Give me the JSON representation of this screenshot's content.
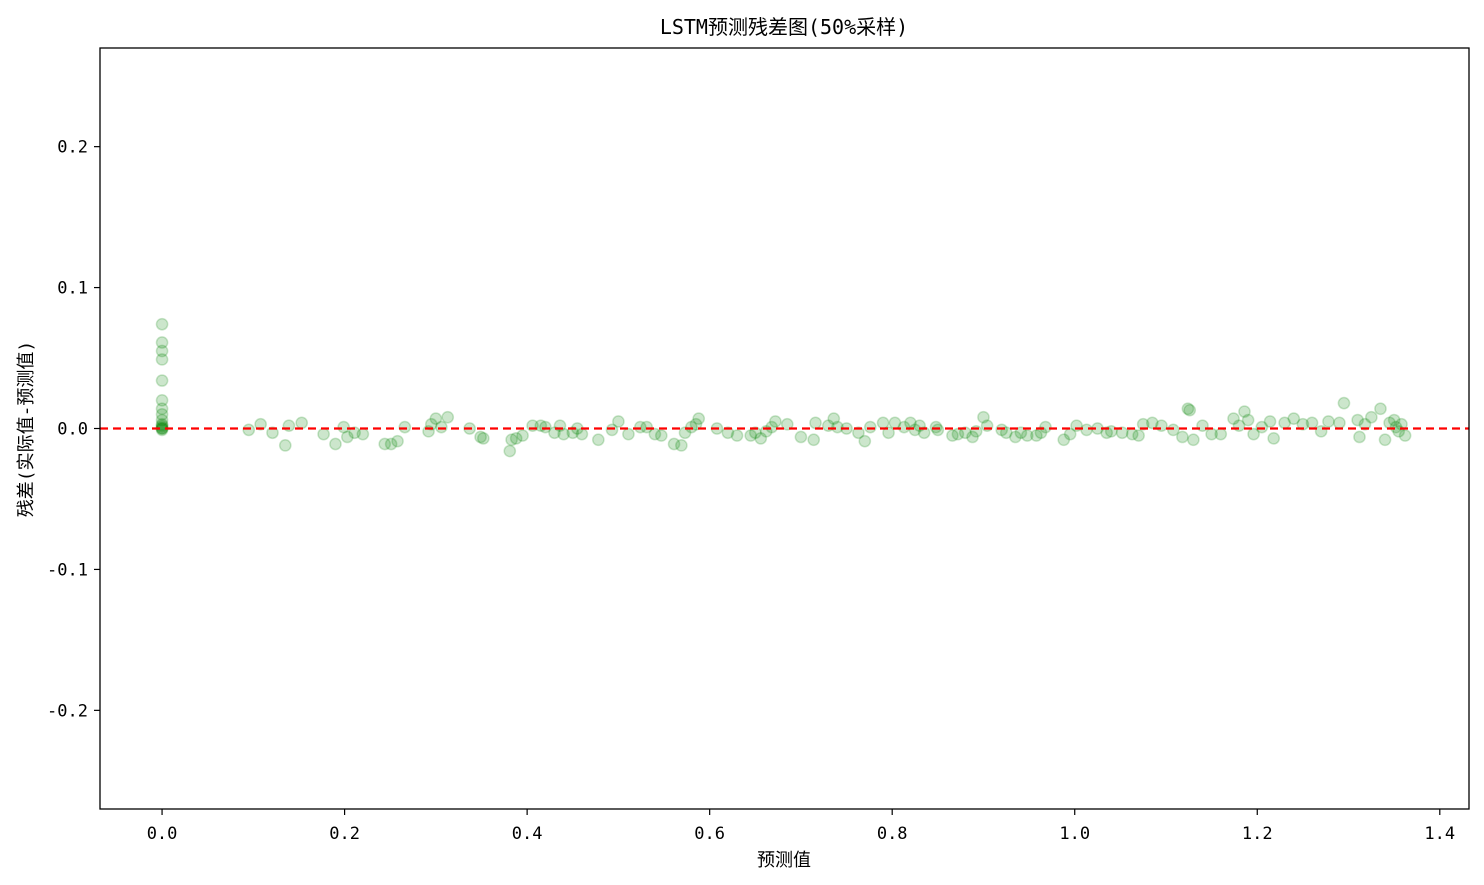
{
  "chart_data": {
    "type": "scatter",
    "title": "LSTM预测残差图(50%采样)",
    "xlabel": "预测值",
    "ylabel": "残差(实际值-预测值)",
    "xlim": [
      -0.068,
      1.432
    ],
    "ylim": [
      -0.27,
      0.27
    ],
    "xticks": [
      0.0,
      0.2,
      0.4,
      0.6,
      0.8,
      1.0,
      1.2,
      1.4
    ],
    "xtick_labels": [
      "0.0",
      "0.2",
      "0.4",
      "0.6",
      "0.8",
      "1.0",
      "1.2",
      "1.4"
    ],
    "yticks": [
      -0.2,
      -0.1,
      0.0,
      0.1,
      0.2
    ],
    "ytick_labels": [
      "-0.2",
      "-0.1",
      "0.0",
      "0.1",
      "0.2"
    ],
    "grid": false,
    "point_color": "#008000",
    "point_opacity": 0.2,
    "reference_line": {
      "y": 0.0,
      "color": "#ff0000",
      "style": "dashed"
    },
    "points": [
      [
        0.0,
        0.074
      ],
      [
        0.0,
        0.061
      ],
      [
        0.0,
        0.055
      ],
      [
        0.0,
        0.049
      ],
      [
        0.0,
        0.034
      ],
      [
        0.0,
        0.02
      ],
      [
        0.0,
        0.014
      ],
      [
        0.0,
        0.01
      ],
      [
        0.0,
        0.006
      ],
      [
        0.0,
        0.003
      ],
      [
        0.0,
        0.001
      ],
      [
        0.0,
        0.0
      ],
      [
        0.0,
        -0.001
      ],
      [
        0.0,
        0.0
      ],
      [
        0.0,
        0.002
      ],
      [
        0.095,
        -0.001
      ],
      [
        0.108,
        0.003
      ],
      [
        0.121,
        -0.003
      ],
      [
        0.135,
        -0.012
      ],
      [
        0.139,
        0.002
      ],
      [
        0.153,
        0.004
      ],
      [
        0.177,
        -0.004
      ],
      [
        0.19,
        -0.011
      ],
      [
        0.199,
        0.001
      ],
      [
        0.203,
        -0.006
      ],
      [
        0.211,
        -0.003
      ],
      [
        0.22,
        -0.004
      ],
      [
        0.244,
        -0.011
      ],
      [
        0.251,
        -0.011
      ],
      [
        0.258,
        -0.009
      ],
      [
        0.266,
        0.001
      ],
      [
        0.292,
        -0.002
      ],
      [
        0.295,
        0.003
      ],
      [
        0.3,
        0.007
      ],
      [
        0.306,
        0.001
      ],
      [
        0.313,
        0.008
      ],
      [
        0.337,
        0.0
      ],
      [
        0.349,
        -0.006
      ],
      [
        0.352,
        -0.007
      ],
      [
        0.381,
        -0.016
      ],
      [
        0.383,
        -0.008
      ],
      [
        0.388,
        -0.007
      ],
      [
        0.395,
        -0.005
      ],
      [
        0.406,
        0.002
      ],
      [
        0.415,
        0.002
      ],
      [
        0.42,
        0.001
      ],
      [
        0.43,
        -0.003
      ],
      [
        0.436,
        0.002
      ],
      [
        0.44,
        -0.004
      ],
      [
        0.45,
        -0.003
      ],
      [
        0.455,
        0.0
      ],
      [
        0.46,
        -0.004
      ],
      [
        0.478,
        -0.008
      ],
      [
        0.493,
        -0.001
      ],
      [
        0.5,
        0.005
      ],
      [
        0.511,
        -0.004
      ],
      [
        0.524,
        0.001
      ],
      [
        0.531,
        0.001
      ],
      [
        0.54,
        -0.004
      ],
      [
        0.547,
        -0.005
      ],
      [
        0.561,
        -0.011
      ],
      [
        0.569,
        -0.012
      ],
      [
        0.573,
        -0.003
      ],
      [
        0.58,
        0.001
      ],
      [
        0.585,
        0.003
      ],
      [
        0.588,
        0.007
      ],
      [
        0.608,
        0.0
      ],
      [
        0.62,
        -0.003
      ],
      [
        0.63,
        -0.005
      ],
      [
        0.645,
        -0.005
      ],
      [
        0.65,
        -0.003
      ],
      [
        0.656,
        -0.007
      ],
      [
        0.662,
        -0.002
      ],
      [
        0.668,
        0.001
      ],
      [
        0.672,
        0.005
      ],
      [
        0.685,
        0.003
      ],
      [
        0.7,
        -0.006
      ],
      [
        0.714,
        -0.008
      ],
      [
        0.716,
        0.004
      ],
      [
        0.73,
        0.002
      ],
      [
        0.736,
        0.007
      ],
      [
        0.74,
        0.001
      ],
      [
        0.75,
        0.0
      ],
      [
        0.763,
        -0.003
      ],
      [
        0.77,
        -0.009
      ],
      [
        0.776,
        0.001
      ],
      [
        0.79,
        0.004
      ],
      [
        0.796,
        -0.003
      ],
      [
        0.803,
        0.004
      ],
      [
        0.813,
        0.001
      ],
      [
        0.82,
        0.004
      ],
      [
        0.825,
        -0.001
      ],
      [
        0.83,
        0.002
      ],
      [
        0.835,
        -0.003
      ],
      [
        0.848,
        0.001
      ],
      [
        0.85,
        -0.001
      ],
      [
        0.866,
        -0.005
      ],
      [
        0.872,
        -0.004
      ],
      [
        0.88,
        -0.003
      ],
      [
        0.888,
        -0.006
      ],
      [
        0.892,
        -0.002
      ],
      [
        0.9,
        0.008
      ],
      [
        0.904,
        0.002
      ],
      [
        0.92,
        -0.001
      ],
      [
        0.925,
        -0.003
      ],
      [
        0.935,
        -0.006
      ],
      [
        0.941,
        -0.003
      ],
      [
        0.948,
        -0.005
      ],
      [
        0.958,
        -0.005
      ],
      [
        0.963,
        -0.003
      ],
      [
        0.968,
        0.001
      ],
      [
        0.988,
        -0.008
      ],
      [
        0.995,
        -0.004
      ],
      [
        1.002,
        0.002
      ],
      [
        1.013,
        -0.001
      ],
      [
        1.025,
        0.0
      ],
      [
        1.035,
        -0.003
      ],
      [
        1.04,
        -0.002
      ],
      [
        1.052,
        -0.003
      ],
      [
        1.063,
        -0.004
      ],
      [
        1.07,
        -0.005
      ],
      [
        1.075,
        0.003
      ],
      [
        1.085,
        0.004
      ],
      [
        1.095,
        0.002
      ],
      [
        1.108,
        -0.001
      ],
      [
        1.118,
        -0.006
      ],
      [
        1.124,
        0.014
      ],
      [
        1.126,
        0.013
      ],
      [
        1.13,
        -0.008
      ],
      [
        1.14,
        0.002
      ],
      [
        1.15,
        -0.004
      ],
      [
        1.16,
        -0.004
      ],
      [
        1.174,
        0.007
      ],
      [
        1.18,
        0.002
      ],
      [
        1.186,
        0.012
      ],
      [
        1.19,
        0.006
      ],
      [
        1.196,
        -0.004
      ],
      [
        1.205,
        0.001
      ],
      [
        1.214,
        0.005
      ],
      [
        1.218,
        -0.007
      ],
      [
        1.23,
        0.004
      ],
      [
        1.24,
        0.007
      ],
      [
        1.25,
        0.003
      ],
      [
        1.26,
        0.004
      ],
      [
        1.27,
        -0.002
      ],
      [
        1.278,
        0.005
      ],
      [
        1.29,
        0.004
      ],
      [
        1.295,
        0.018
      ],
      [
        1.31,
        0.006
      ],
      [
        1.312,
        -0.006
      ],
      [
        1.318,
        0.003
      ],
      [
        1.325,
        0.008
      ],
      [
        1.335,
        0.014
      ],
      [
        1.34,
        -0.008
      ],
      [
        1.345,
        0.004
      ],
      [
        1.35,
        0.006
      ],
      [
        1.352,
        0.001
      ],
      [
        1.355,
        -0.002
      ],
      [
        1.358,
        0.003
      ],
      [
        1.362,
        -0.005
      ]
    ]
  }
}
